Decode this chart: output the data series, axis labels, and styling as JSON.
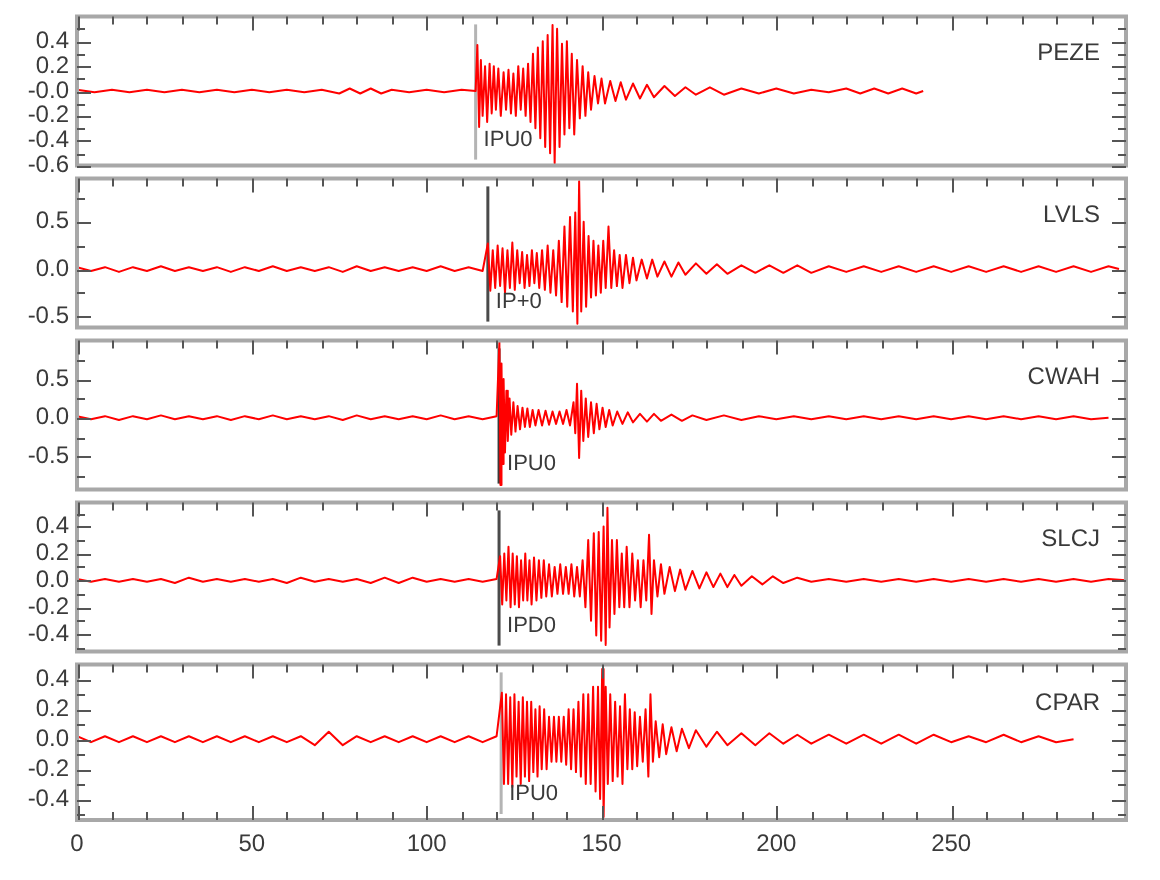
{
  "chart_data": [
    {
      "type": "line",
      "title": "PEZE",
      "color": "#ff0000",
      "xlim": [
        0,
        300
      ],
      "ylim": [
        -0.6,
        0.6
      ],
      "tick_labels": "y",
      "xticks": [
        0,
        {
          "value": 10,
          "label": null
        },
        {
          "value": 20,
          "label": null
        },
        {
          "value": 30,
          "label": null
        },
        {
          "value": 40,
          "label": null
        },
        50,
        {
          "value": 60,
          "label": null
        },
        {
          "value": 70,
          "label": null
        },
        {
          "value": 80,
          "label": null
        },
        {
          "value": 90,
          "label": null
        },
        100,
        {
          "value": 110,
          "label": null
        },
        {
          "value": 120,
          "label": null
        },
        {
          "value": 130,
          "label": null
        },
        {
          "value": 140,
          "label": null
        },
        150,
        {
          "value": 160,
          "label": null
        },
        {
          "value": 170,
          "label": null
        },
        {
          "value": 180,
          "label": null
        },
        {
          "value": 190,
          "label": null
        },
        200,
        {
          "value": 210,
          "label": null
        },
        {
          "value": 220,
          "label": null
        },
        {
          "value": 230,
          "label": null
        },
        {
          "value": 240,
          "label": null
        },
        250,
        {
          "value": 260,
          "label": null
        },
        {
          "value": 270,
          "label": null
        },
        {
          "value": 280,
          "label": null
        },
        {
          "value": 290,
          "label": null
        }
      ],
      "yticks": [
        -0.6,
        {
          "value": -0.5,
          "label": null
        },
        -0.4,
        {
          "value": -0.3,
          "label": null
        },
        -0.2,
        {
          "value": -0.1,
          "label": null
        },
        {
          "value": 0,
          "label": "-0.0"
        },
        {
          "value": 0.1,
          "label": null
        },
        0.2,
        {
          "value": 0.3,
          "label": null
        },
        0.4,
        {
          "value": 0.5,
          "label": null
        }
      ],
      "ref_lines": [
        {
          "axis": "x",
          "value": 114,
          "label": "IPU0",
          "color": "#b4b4b4"
        }
      ],
      "x": [
        0,
        5,
        10,
        15,
        20,
        25,
        30,
        35,
        40,
        45,
        50,
        55,
        60,
        65,
        70,
        75,
        78,
        81,
        84,
        87,
        90,
        95,
        100,
        105,
        110,
        114,
        114.5,
        115,
        115.5,
        116,
        116.7,
        117.3,
        118,
        118.6,
        119.2,
        119.8,
        120.5,
        121.2,
        122,
        122.7,
        123.4,
        124.1,
        124.8,
        125.5,
        126.2,
        126.9,
        127.6,
        128.3,
        129,
        129.7,
        130.4,
        131.1,
        131.8,
        132.5,
        133.2,
        133.9,
        134.6,
        135.3,
        136,
        136.6,
        137.3,
        138,
        138.7,
        139.4,
        140.1,
        140.8,
        141.5,
        142.2,
        143,
        143.8,
        144.6,
        145.4,
        146.2,
        147,
        148,
        149,
        150,
        151,
        152.5,
        154,
        155.5,
        157,
        159,
        161,
        163,
        165,
        168,
        171,
        174,
        177,
        181,
        185,
        190,
        195,
        200,
        205,
        210,
        215,
        220,
        224,
        228,
        232,
        236,
        240,
        242
      ],
      "values": [
        0.01,
        -0.01,
        0.01,
        -0.01,
        0.01,
        -0.01,
        0.01,
        -0.01,
        0.01,
        -0.01,
        0.01,
        -0.01,
        0.01,
        -0.01,
        0.01,
        -0.02,
        0.02,
        -0.02,
        0.02,
        -0.02,
        0.01,
        -0.01,
        0.01,
        -0.01,
        0.01,
        0,
        0.37,
        -0.29,
        0.25,
        -0.2,
        0.2,
        -0.25,
        0.22,
        -0.18,
        0.2,
        -0.15,
        0.18,
        -0.2,
        0.15,
        -0.15,
        0.17,
        -0.18,
        0.14,
        -0.2,
        0.2,
        -0.15,
        0.18,
        -0.2,
        0.22,
        -0.25,
        0.3,
        -0.3,
        0.35,
        -0.38,
        0.4,
        -0.45,
        0.45,
        -0.5,
        0.53,
        -0.58,
        0.5,
        -0.45,
        0.38,
        -0.35,
        0.4,
        -0.3,
        0.3,
        -0.35,
        0.25,
        -0.22,
        0.2,
        -0.2,
        0.15,
        -0.15,
        0.12,
        -0.1,
        0.1,
        -0.1,
        0.08,
        -0.08,
        0.07,
        -0.07,
        0.06,
        -0.06,
        0.05,
        -0.05,
        0.04,
        -0.04,
        0.03,
        -0.03,
        0.03,
        -0.03,
        0.02,
        -0.02,
        0.02,
        -0.02,
        0.01,
        -0.01,
        0.02,
        -0.02,
        0.02,
        -0.02,
        0.02,
        -0.02,
        0
      ]
    },
    {
      "type": "line",
      "title": "LVLS",
      "color": "#ff0000",
      "xlim": [
        0,
        300
      ],
      "ylim": [
        -0.62,
        0.96
      ],
      "tick_labels": "y",
      "xticks": [
        0,
        {
          "value": 10,
          "label": null
        },
        {
          "value": 20,
          "label": null
        },
        {
          "value": 30,
          "label": null
        },
        {
          "value": 40,
          "label": null
        },
        50,
        {
          "value": 60,
          "label": null
        },
        {
          "value": 70,
          "label": null
        },
        {
          "value": 80,
          "label": null
        },
        {
          "value": 90,
          "label": null
        },
        100,
        {
          "value": 110,
          "label": null
        },
        {
          "value": 120,
          "label": null
        },
        {
          "value": 130,
          "label": null
        },
        {
          "value": 140,
          "label": null
        },
        150,
        {
          "value": 160,
          "label": null
        },
        {
          "value": 170,
          "label": null
        },
        {
          "value": 180,
          "label": null
        },
        {
          "value": 190,
          "label": null
        },
        200,
        {
          "value": 210,
          "label": null
        },
        {
          "value": 220,
          "label": null
        },
        {
          "value": 230,
          "label": null
        },
        {
          "value": 240,
          "label": null
        },
        250,
        {
          "value": 260,
          "label": null
        },
        {
          "value": 270,
          "label": null
        },
        {
          "value": 280,
          "label": null
        },
        {
          "value": 290,
          "label": null
        }
      ],
      "yticks": [
        -0.5,
        {
          "value": -0.25,
          "label": null
        },
        {
          "value": 0,
          "label": "0.0"
        },
        {
          "value": 0.25,
          "label": null
        },
        0.5,
        {
          "value": 0.75,
          "label": null
        }
      ],
      "ref_lines": [
        {
          "axis": "x",
          "value": 117.5,
          "label": "IP+0",
          "color": "#4a4a4a"
        }
      ],
      "x": [
        0,
        4,
        8,
        12,
        16,
        20,
        24,
        28,
        32,
        36,
        40,
        44,
        48,
        52,
        56,
        60,
        64,
        68,
        72,
        76,
        80,
        84,
        88,
        92,
        96,
        100,
        104,
        108,
        112,
        116,
        117.5,
        118.2,
        118.9,
        119.6,
        120.3,
        121,
        121.7,
        122.4,
        123.1,
        123.8,
        124.5,
        125.2,
        125.9,
        126.6,
        127.3,
        128,
        128.7,
        129.4,
        130.1,
        130.8,
        131.5,
        132.2,
        133,
        133.8,
        134.6,
        135.4,
        136.2,
        137,
        137.8,
        138.6,
        139.4,
        140.2,
        141,
        141.8,
        142.5,
        143.1,
        143.6,
        144.2,
        144.9,
        145.6,
        146.3,
        147,
        147.7,
        148.4,
        149.1,
        149.8,
        150.5,
        151.2,
        152,
        152.8,
        153.6,
        154.4,
        155.2,
        156,
        157,
        158,
        159,
        160,
        161.5,
        163,
        164.5,
        166,
        168,
        170,
        172,
        174,
        177,
        180,
        183,
        186,
        190,
        194,
        198,
        202,
        206,
        210,
        215,
        220,
        225,
        230,
        235,
        240,
        245,
        250,
        255,
        260,
        265,
        270,
        275,
        280,
        285,
        290,
        295,
        298
      ],
      "values": [
        0.02,
        -0.02,
        0.02,
        -0.03,
        0.02,
        -0.02,
        0.03,
        -0.02,
        0.02,
        -0.02,
        0.02,
        -0.03,
        0.02,
        -0.02,
        0.03,
        -0.02,
        0.02,
        -0.02,
        0.02,
        -0.03,
        0.03,
        -0.02,
        0.02,
        -0.02,
        0.02,
        -0.02,
        0.03,
        -0.02,
        0.02,
        -0.02,
        0.27,
        -0.23,
        0.2,
        -0.2,
        0.25,
        -0.18,
        0.22,
        -0.25,
        0.2,
        -0.2,
        0.28,
        -0.22,
        0.2,
        -0.15,
        0.18,
        -0.2,
        0.15,
        -0.18,
        0.2,
        -0.15,
        0.17,
        -0.2,
        0.2,
        -0.22,
        0.25,
        -0.25,
        0.2,
        -0.28,
        0.3,
        -0.35,
        0.45,
        -0.4,
        0.55,
        -0.45,
        0.6,
        -0.58,
        0.93,
        -0.45,
        0.5,
        -0.4,
        0.35,
        -0.3,
        0.3,
        -0.28,
        0.25,
        -0.25,
        0.3,
        -0.2,
        0.45,
        -0.2,
        0.2,
        -0.18,
        0.15,
        -0.2,
        0.15,
        -0.15,
        0.12,
        -0.12,
        0.1,
        -0.1,
        0.1,
        -0.08,
        0.08,
        -0.08,
        0.07,
        -0.06,
        0.06,
        -0.05,
        0.05,
        -0.05,
        0.04,
        -0.04,
        0.04,
        -0.04,
        0.04,
        -0.04,
        0.03,
        -0.03,
        0.03,
        -0.03,
        0.03,
        -0.03,
        0.03,
        -0.03,
        0.03,
        -0.03,
        0.03,
        -0.03,
        0.03,
        -0.03,
        0.03,
        -0.03,
        0.03,
        0
      ]
    },
    {
      "type": "line",
      "title": "CWAH",
      "color": "#ff0000",
      "xlim": [
        0,
        300
      ],
      "ylim": [
        -0.93,
        1.0
      ],
      "tick_labels": "y",
      "xticks": [
        0,
        {
          "value": 10,
          "label": null
        },
        {
          "value": 20,
          "label": null
        },
        {
          "value": 30,
          "label": null
        },
        {
          "value": 40,
          "label": null
        },
        50,
        {
          "value": 60,
          "label": null
        },
        {
          "value": 70,
          "label": null
        },
        {
          "value": 80,
          "label": null
        },
        {
          "value": 90,
          "label": null
        },
        100,
        {
          "value": 110,
          "label": null
        },
        {
          "value": 120,
          "label": null
        },
        {
          "value": 130,
          "label": null
        },
        {
          "value": 140,
          "label": null
        },
        150,
        {
          "value": 160,
          "label": null
        },
        {
          "value": 170,
          "label": null
        },
        {
          "value": 180,
          "label": null
        },
        {
          "value": 190,
          "label": null
        },
        200,
        {
          "value": 210,
          "label": null
        },
        {
          "value": 220,
          "label": null
        },
        {
          "value": 230,
          "label": null
        },
        {
          "value": 240,
          "label": null
        },
        250,
        {
          "value": 260,
          "label": null
        },
        {
          "value": 270,
          "label": null
        },
        {
          "value": 280,
          "label": null
        },
        {
          "value": 290,
          "label": null
        }
      ],
      "yticks": [
        {
          "value": -0.75,
          "label": null
        },
        -0.5,
        {
          "value": -0.25,
          "label": null
        },
        {
          "value": 0,
          "label": "0.0"
        },
        {
          "value": 0.25,
          "label": null
        },
        0.5,
        {
          "value": 0.75,
          "label": null
        }
      ],
      "ref_lines": [
        {
          "axis": "x",
          "value": 120.7,
          "label": "IPU0",
          "color": "#3a3a3a"
        }
      ],
      "x": [
        0,
        4,
        8,
        12,
        16,
        20,
        24,
        28,
        32,
        36,
        40,
        44,
        48,
        52,
        56,
        60,
        64,
        68,
        72,
        76,
        80,
        84,
        88,
        92,
        96,
        100,
        104,
        108,
        112,
        116,
        120,
        120.8,
        121.1,
        121.4,
        121.7,
        122,
        122.4,
        122.8,
        123.2,
        123.7,
        124.2,
        124.8,
        125.4,
        126,
        126.7,
        127.4,
        128.1,
        128.8,
        129.5,
        130.3,
        131.1,
        132,
        133,
        134,
        135,
        136,
        137,
        138,
        139,
        140,
        141,
        142,
        142.5,
        143,
        143.6,
        144.2,
        144.8,
        145.5,
        146.2,
        147,
        147.8,
        148.6,
        149.4,
        150.3,
        151.2,
        152.2,
        153.2,
        154.5,
        156,
        157.5,
        159,
        161,
        163,
        165,
        167,
        170,
        173,
        176,
        180,
        185,
        190,
        195,
        200,
        205,
        210,
        215,
        220,
        225,
        230,
        235,
        240,
        245,
        250,
        255,
        260,
        265,
        270,
        275,
        280,
        285,
        290,
        295
      ],
      "values": [
        0.02,
        -0.02,
        0.02,
        -0.03,
        0.02,
        -0.02,
        0.03,
        -0.02,
        0.02,
        -0.02,
        0.02,
        -0.03,
        0.02,
        -0.02,
        0.03,
        -0.02,
        0.02,
        -0.02,
        0.02,
        -0.03,
        0.03,
        -0.02,
        0.02,
        -0.02,
        0.02,
        -0.02,
        0.03,
        -0.02,
        0.02,
        -0.02,
        0.02,
        0.98,
        -0.87,
        0.7,
        -0.6,
        0.5,
        -0.45,
        0.35,
        -0.3,
        0.25,
        -0.22,
        0.2,
        -0.18,
        0.15,
        -0.15,
        0.13,
        -0.12,
        0.12,
        -0.12,
        0.1,
        -0.1,
        0.1,
        -0.1,
        0.09,
        -0.09,
        0.08,
        -0.08,
        0.08,
        -0.08,
        0.1,
        -0.1,
        0.2,
        -0.2,
        0.44,
        -0.52,
        0.35,
        -0.3,
        0.25,
        -0.25,
        0.2,
        -0.2,
        0.18,
        -0.15,
        0.13,
        -0.12,
        0.1,
        -0.1,
        0.08,
        -0.08,
        0.07,
        -0.06,
        0.05,
        -0.05,
        0.05,
        -0.04,
        0.04,
        -0.04,
        0.03,
        -0.03,
        0.03,
        -0.03,
        0.02,
        -0.02,
        0.02,
        -0.02,
        0.02,
        -0.02,
        0.02,
        -0.02,
        0.02,
        -0.02,
        0.02,
        -0.02,
        0.02,
        -0.02,
        0.02,
        -0.02,
        0.02,
        -0.02,
        0.02,
        -0.02,
        0
      ]
    },
    {
      "type": "line",
      "title": "SLCJ",
      "color": "#ff0000",
      "xlim": [
        0,
        300
      ],
      "ylim": [
        -0.53,
        0.58
      ],
      "tick_labels": "y",
      "xticks": [
        0,
        {
          "value": 10,
          "label": null
        },
        {
          "value": 20,
          "label": null
        },
        {
          "value": 30,
          "label": null
        },
        {
          "value": 40,
          "label": null
        },
        50,
        {
          "value": 60,
          "label": null
        },
        {
          "value": 70,
          "label": null
        },
        {
          "value": 80,
          "label": null
        },
        {
          "value": 90,
          "label": null
        },
        100,
        {
          "value": 110,
          "label": null
        },
        {
          "value": 120,
          "label": null
        },
        {
          "value": 130,
          "label": null
        },
        {
          "value": 140,
          "label": null
        },
        150,
        {
          "value": 160,
          "label": null
        },
        {
          "value": 170,
          "label": null
        },
        {
          "value": 180,
          "label": null
        },
        {
          "value": 190,
          "label": null
        },
        200,
        {
          "value": 210,
          "label": null
        },
        {
          "value": 220,
          "label": null
        },
        {
          "value": 230,
          "label": null
        },
        {
          "value": 240,
          "label": null
        },
        250,
        {
          "value": 260,
          "label": null
        },
        {
          "value": 270,
          "label": null
        },
        {
          "value": 280,
          "label": null
        },
        {
          "value": 290,
          "label": null
        }
      ],
      "yticks": [
        {
          "value": -0.5,
          "label": null
        },
        -0.4,
        {
          "value": -0.3,
          "label": null
        },
        -0.2,
        {
          "value": -0.1,
          "label": null
        },
        {
          "value": 0,
          "label": "0.0"
        },
        {
          "value": 0.1,
          "label": null
        },
        0.2,
        {
          "value": 0.3,
          "label": null
        },
        0.4,
        {
          "value": 0.5,
          "label": null
        }
      ],
      "ref_lines": [
        {
          "axis": "x",
          "value": 120.7,
          "label": "IPD0",
          "color": "#4a4a4a"
        }
      ],
      "x": [
        0,
        4,
        8,
        12,
        16,
        20,
        24,
        28,
        32,
        36,
        40,
        44,
        48,
        52,
        56,
        60,
        64,
        68,
        72,
        76,
        80,
        84,
        88,
        92,
        96,
        100,
        104,
        108,
        112,
        116,
        120,
        121,
        121.6,
        122.2,
        122.8,
        123.4,
        124,
        124.6,
        125.2,
        125.8,
        126.4,
        127,
        127.6,
        128.2,
        128.8,
        129.4,
        130,
        130.7,
        131.4,
        132.1,
        132.8,
        133.5,
        134.2,
        135,
        135.8,
        136.6,
        137.4,
        138.2,
        139,
        139.8,
        140.6,
        141.4,
        142.2,
        143,
        143.8,
        144.6,
        145.4,
        146.2,
        147,
        147.8,
        148.5,
        149.2,
        149.9,
        150.6,
        151.2,
        151.7,
        152.3,
        153,
        153.7,
        154.4,
        155.1,
        155.8,
        156.5,
        157.2,
        158,
        158.8,
        159.6,
        160.4,
        161.2,
        162,
        162.8,
        163.6,
        164.3,
        165,
        166,
        167,
        168,
        169.5,
        171,
        172.5,
        174,
        176,
        178,
        180,
        182,
        184,
        186,
        188,
        190,
        193,
        196,
        199,
        202,
        206,
        210,
        215,
        220,
        225,
        230,
        235,
        240,
        245,
        250,
        255,
        260,
        265,
        270,
        275,
        280,
        285,
        290,
        295,
        300
      ],
      "values": [
        0.01,
        -0.01,
        0.01,
        -0.01,
        0.01,
        -0.01,
        0.01,
        -0.02,
        0.02,
        -0.01,
        0.01,
        -0.01,
        0.01,
        -0.01,
        0.01,
        -0.02,
        0.02,
        -0.01,
        0.01,
        -0.01,
        0.01,
        -0.02,
        0.02,
        -0.02,
        0.02,
        -0.01,
        0.01,
        -0.01,
        0.01,
        -0.01,
        0.01,
        0.18,
        -0.18,
        0.2,
        -0.15,
        0.25,
        -0.2,
        0.2,
        -0.18,
        0.18,
        -0.2,
        0.15,
        -0.15,
        0.2,
        -0.15,
        0.15,
        -0.18,
        0.17,
        -0.15,
        0.15,
        -0.13,
        0.15,
        -0.12,
        0.12,
        -0.12,
        0.1,
        -0.1,
        0.12,
        -0.1,
        0.1,
        -0.1,
        0.12,
        -0.12,
        0.1,
        -0.12,
        0.15,
        -0.2,
        0.3,
        -0.3,
        0.35,
        -0.41,
        0.36,
        -0.45,
        0.4,
        -0.48,
        0.54,
        -0.35,
        0.3,
        -0.25,
        0.3,
        -0.2,
        0.2,
        -0.2,
        0.25,
        -0.2,
        0.2,
        -0.15,
        0.15,
        -0.2,
        0.15,
        -0.15,
        0.34,
        -0.25,
        0.15,
        -0.12,
        0.12,
        -0.1,
        0.1,
        -0.08,
        0.08,
        -0.07,
        0.07,
        -0.06,
        0.06,
        -0.05,
        0.05,
        -0.05,
        0.04,
        -0.04,
        0.03,
        -0.03,
        0.03,
        -0.02,
        0.02,
        -0.01,
        0.01,
        -0.01,
        0.01,
        -0.01,
        0.01,
        -0.01,
        0.01,
        -0.01,
        0.01,
        -0.01,
        0.01,
        -0.01,
        0.01,
        -0.01,
        0.01,
        -0.01,
        0.01,
        0
      ]
    },
    {
      "type": "line",
      "title": "CPAR",
      "color": "#ff0000",
      "xlim": [
        0,
        300
      ],
      "ylim": [
        -0.54,
        0.5
      ],
      "xticks": [
        0,
        {
          "value": 10,
          "label": null
        },
        {
          "value": 20,
          "label": null
        },
        {
          "value": 30,
          "label": null
        },
        {
          "value": 40,
          "label": null
        },
        50,
        {
          "value": 60,
          "label": null
        },
        {
          "value": 70,
          "label": null
        },
        {
          "value": 80,
          "label": null
        },
        {
          "value": 90,
          "label": null
        },
        100,
        {
          "value": 110,
          "label": null
        },
        {
          "value": 120,
          "label": null
        },
        {
          "value": 130,
          "label": null
        },
        {
          "value": 140,
          "label": null
        },
        150,
        {
          "value": 160,
          "label": null
        },
        {
          "value": 170,
          "label": null
        },
        {
          "value": 180,
          "label": null
        },
        {
          "value": 190,
          "label": null
        },
        200,
        {
          "value": 210,
          "label": null
        },
        {
          "value": 220,
          "label": null
        },
        {
          "value": 230,
          "label": null
        },
        {
          "value": 240,
          "label": null
        },
        250,
        {
          "value": 260,
          "label": null
        },
        {
          "value": 270,
          "label": null
        },
        {
          "value": 280,
          "label": null
        },
        {
          "value": 290,
          "label": null
        }
      ],
      "yticks": [
        {
          "value": -0.5,
          "label": null
        },
        -0.4,
        {
          "value": -0.3,
          "label": null
        },
        -0.2,
        {
          "value": -0.1,
          "label": null
        },
        {
          "value": 0,
          "label": "0.0"
        },
        {
          "value": 0.1,
          "label": null
        },
        0.2,
        {
          "value": 0.3,
          "label": null
        },
        0.4
      ],
      "ref_lines": [
        {
          "axis": "x",
          "value": 121.3,
          "label": "IPU0",
          "color": "#b4b4b4"
        }
      ],
      "x": [
        0,
        4,
        8,
        12,
        16,
        20,
        24,
        28,
        32,
        36,
        40,
        44,
        48,
        52,
        56,
        60,
        64,
        68,
        72,
        76,
        80,
        84,
        88,
        92,
        96,
        100,
        104,
        108,
        112,
        116,
        120,
        121.5,
        122.1,
        122.7,
        123.3,
        123.9,
        124.5,
        125.1,
        125.7,
        126.3,
        126.9,
        127.5,
        128.1,
        128.7,
        129.3,
        129.9,
        130.5,
        131.1,
        131.7,
        132.3,
        132.9,
        133.6,
        134.3,
        135,
        135.7,
        136.4,
        137.1,
        137.8,
        138.5,
        139.2,
        139.9,
        140.6,
        141.3,
        142,
        142.7,
        143.4,
        144.1,
        144.8,
        145.5,
        146.2,
        146.9,
        147.6,
        148.3,
        149,
        149.6,
        150.2,
        150.6,
        151.2,
        151.8,
        152.5,
        153.2,
        153.9,
        154.6,
        155.3,
        156,
        156.7,
        157.4,
        158.1,
        158.8,
        159.5,
        160.2,
        161,
        161.8,
        162.6,
        163.4,
        164,
        164.7,
        165.5,
        166.5,
        167.5,
        168.5,
        170,
        171.5,
        173,
        175,
        177,
        180,
        183,
        186,
        190,
        194,
        198,
        202,
        206,
        210,
        215,
        220,
        225,
        230,
        235,
        240,
        245,
        250,
        255,
        260,
        265,
        270,
        275,
        280,
        285
      ],
      "values": [
        0.02,
        -0.02,
        0.02,
        -0.02,
        0.02,
        -0.02,
        0.02,
        -0.02,
        0.02,
        -0.02,
        0.02,
        -0.02,
        0.02,
        -0.02,
        0.02,
        -0.02,
        0.02,
        -0.04,
        0.05,
        -0.04,
        0.02,
        -0.02,
        0.02,
        -0.02,
        0.02,
        -0.02,
        0.02,
        -0.02,
        0.02,
        -0.02,
        0.02,
        0.31,
        -0.3,
        0.3,
        -0.3,
        0.28,
        -0.32,
        0.3,
        -0.25,
        0.25,
        -0.3,
        0.28,
        -0.25,
        0.25,
        -0.28,
        0.25,
        -0.22,
        0.2,
        -0.25,
        0.22,
        -0.2,
        0.2,
        -0.2,
        0.15,
        -0.15,
        0.15,
        -0.15,
        0.15,
        -0.15,
        0.15,
        -0.17,
        0.2,
        -0.2,
        0.2,
        -0.22,
        0.25,
        -0.25,
        0.3,
        -0.3,
        0.3,
        -0.3,
        0.35,
        -0.35,
        0.35,
        -0.4,
        0.47,
        -0.52,
        0.35,
        -0.3,
        0.3,
        -0.28,
        0.25,
        -0.25,
        0.22,
        -0.3,
        0.3,
        -0.2,
        0.2,
        -0.2,
        0.18,
        -0.18,
        0.15,
        -0.15,
        0.2,
        -0.25,
        0.3,
        -0.15,
        0.12,
        -0.12,
        0.1,
        -0.1,
        0.08,
        -0.08,
        0.07,
        -0.06,
        0.06,
        -0.05,
        0.05,
        -0.04,
        0.04,
        -0.04,
        0.04,
        -0.03,
        0.03,
        -0.03,
        0.03,
        -0.03,
        0.03,
        -0.03,
        0.03,
        -0.03,
        0.03,
        -0.02,
        0.02,
        -0.02,
        0.03,
        -0.02,
        0.02,
        -0.02,
        0
      ]
    }
  ]
}
